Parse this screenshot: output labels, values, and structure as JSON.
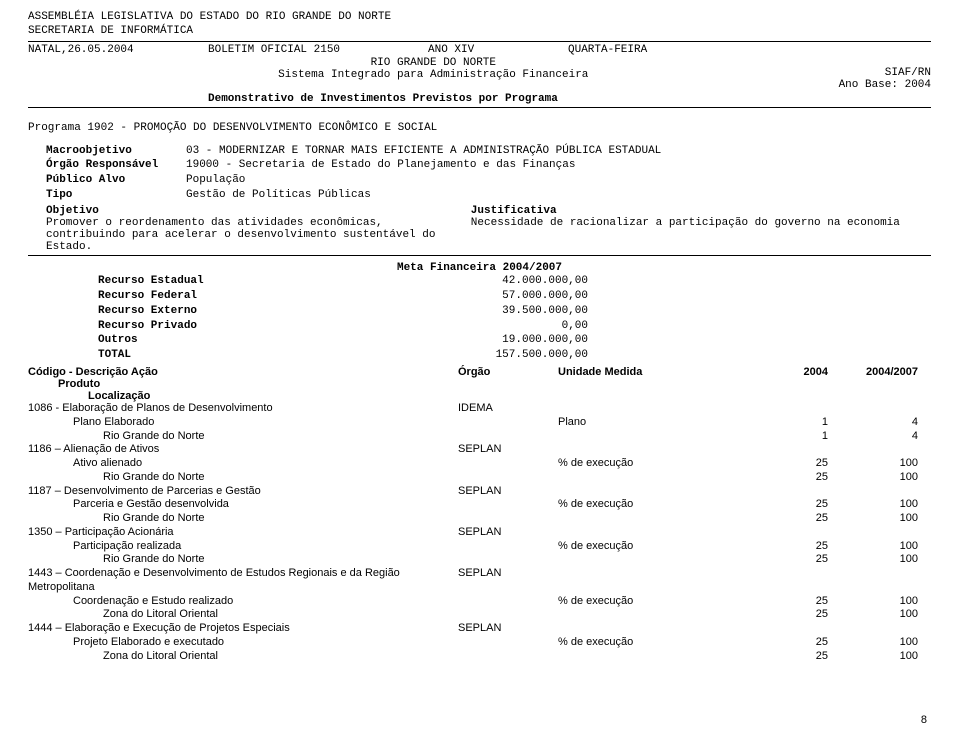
{
  "header": {
    "org1": "ASSEMBLÉIA LEGISLATIVA DO ESTADO DO RIO GRANDE DO NORTE",
    "org2": "SECRETARIA DE INFORMÁTICA",
    "dateplace": "NATAL,26.05.2004",
    "boletim": "BOLETIM OFICIAL 2150",
    "ano": "ANO XIV",
    "dia": "QUARTA-FEIRA",
    "estado": "RIO GRANDE DO NORTE",
    "sistema": "Sistema Integrado para Administração Financeira",
    "siaf": "SIAF/RN",
    "anobase": "Ano Base: 2004",
    "demo": "Demonstrativo de Investimentos Previstos por Programa"
  },
  "programa": "Programa 1902 - PROMOÇÃO DO DESENVOLVIMENTO ECONÔMICO E SOCIAL",
  "fields": {
    "macro_l": "Macroobjetivo",
    "macro_v": "03 - MODERNIZAR E TORNAR MAIS EFICIENTE A ADMINISTRAÇÃO PÚBLICA ESTADUAL",
    "orgao_l": "Órgão Responsável",
    "orgao_v": "19000 - Secretaria de Estado do Planejamento e das Finanças",
    "pub_l": "Público Alvo",
    "pub_v": "População",
    "tipo_l": "Tipo",
    "tipo_v": "Gestão de Políticas Públicas",
    "obj_l": "Objetivo",
    "obj_v": "Promover o reordenamento das atividades econômicas, contribuindo para acelerar o desenvolvimento sustentável do Estado.",
    "just_l": "Justificativa",
    "just_v": "Necessidade de racionalizar a participação do governo na economia"
  },
  "meta": {
    "title": "Meta Financeira 2004/2007",
    "rows": [
      {
        "label": "Recurso Estadual",
        "val": "42.000.000,00"
      },
      {
        "label": "Recurso Federal",
        "val": "57.000.000,00"
      },
      {
        "label": "Recurso Externo",
        "val": "39.500.000,00"
      },
      {
        "label": "Recurso Privado",
        "val": "0,00"
      },
      {
        "label": "Outros",
        "val": "19.000.000,00"
      },
      {
        "label": "TOTAL",
        "val": "157.500.000,00"
      }
    ]
  },
  "th": {
    "acao": "Código - Descrição Ação",
    "orgao": "Órgão",
    "unid": "Unidade Medida",
    "v1": "2004",
    "v2": "2004/2007",
    "produto": "Produto",
    "local": "Localização"
  },
  "actions": [
    {
      "code": "1086 - Elaboração de Planos de Desenvolvimento",
      "orgao": "IDEMA",
      "prod": "Plano Elaborado",
      "unid": "Plano",
      "v1": "1",
      "v2": "4",
      "loc": "Rio Grande do Norte",
      "lv1": "1",
      "lv2": "4"
    },
    {
      "code": "1186 – Alienação de Ativos",
      "orgao": "SEPLAN",
      "prod": "Ativo alienado",
      "unid": "% de execução",
      "v1": "25",
      "v2": "100",
      "loc": "Rio Grande do Norte",
      "lv1": "25",
      "lv2": "100"
    },
    {
      "code": "1187 – Desenvolvimento de Parcerias e Gestão",
      "orgao": "SEPLAN",
      "prod": "Parceria e Gestão desenvolvida",
      "unid": "% de execução",
      "v1": "25",
      "v2": "100",
      "loc": "Rio Grande do Norte",
      "lv1": "25",
      "lv2": "100"
    },
    {
      "code": "1350 – Participação Acionária",
      "orgao": "SEPLAN",
      "prod": "Participação realizada",
      "unid": "% de execução",
      "v1": "25",
      "v2": "100",
      "loc": "Rio Grande do Norte",
      "lv1": "25",
      "lv2": "100"
    },
    {
      "code": "1443 – Coordenação e Desenvolvimento de Estudos Regionais e da Região Metropolitana",
      "orgao": "SEPLAN",
      "prod": "Coordenação e Estudo realizado",
      "unid": "% de execução",
      "v1": "25",
      "v2": "100",
      "loc": "Zona do Litoral Oriental",
      "lv1": "25",
      "lv2": "100"
    },
    {
      "code": "1444 – Elaboração e Execução de Projetos Especiais",
      "orgao": "SEPLAN",
      "prod": "Projeto Elaborado e executado",
      "unid": "% de execução",
      "v1": "25",
      "v2": "100",
      "loc": "Zona do Litoral Oriental",
      "lv1": "25",
      "lv2": "100"
    }
  ],
  "pagenum": "8"
}
